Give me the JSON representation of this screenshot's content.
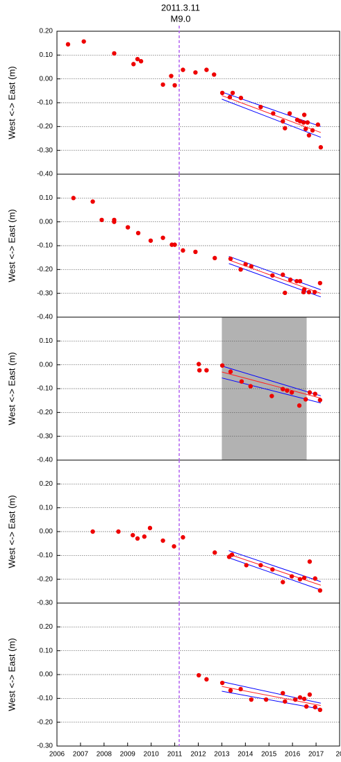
{
  "chart_data": [
    {
      "type": "scatter",
      "title": "2011.3.11",
      "subtitle": "M9.0",
      "ylabel": "West <-> East (m)",
      "xlim": [
        2006,
        2018
      ],
      "ylim": [
        -0.4,
        0.2
      ],
      "grid": true,
      "event_x": 2011.19,
      "event_color": "#b060f0",
      "yticks": [
        {
          "value": 0.2,
          "label": "0.20"
        },
        {
          "value": 0.1,
          "label": "0.10"
        },
        {
          "value": 0,
          "label": "0.00"
        },
        {
          "value": -0.1,
          "label": "-0.10"
        },
        {
          "value": -0.2,
          "label": "-0.20"
        },
        {
          "value": -0.3,
          "label": "-0.30"
        },
        {
          "value": -0.4,
          "label": "-0.40"
        }
      ],
      "series": [
        {
          "style": "points",
          "color": "#ee0000",
          "x": [
            2006.47,
            2007.14,
            2008.43,
            2009.25,
            2009.42,
            2009.57,
            2010.5,
            2010.85,
            2011.0,
            2011.35,
            2011.88,
            2012.35,
            2012.67,
            2013.02,
            2013.34,
            2013.46,
            2013.81,
            2014.65,
            2015.18,
            2015.59,
            2015.68,
            2015.88,
            2016.2,
            2016.32,
            2016.47,
            2016.5,
            2016.56,
            2016.64,
            2016.7,
            2016.85,
            2017.08,
            2017.2
          ],
          "values": [
            0.145,
            0.157,
            0.107,
            0.062,
            0.083,
            0.074,
            -0.024,
            0.012,
            -0.027,
            0.038,
            0.027,
            0.038,
            0.018,
            -0.059,
            -0.077,
            -0.059,
            -0.08,
            -0.118,
            -0.145,
            -0.178,
            -0.207,
            -0.145,
            -0.172,
            -0.178,
            -0.183,
            -0.151,
            -0.21,
            -0.183,
            -0.237,
            -0.216,
            -0.192,
            -0.287
          ]
        },
        {
          "style": "line",
          "color": "#ff2020",
          "x": [
            2013.0,
            2017.2
          ],
          "values": [
            -0.07,
            -0.225
          ]
        },
        {
          "style": "line",
          "color": "#0000ff",
          "x": [
            2013.0,
            2017.2
          ],
          "values": [
            -0.055,
            -0.2
          ]
        },
        {
          "style": "line",
          "color": "#0000ff",
          "x": [
            2013.0,
            2017.2
          ],
          "values": [
            -0.085,
            -0.245
          ]
        }
      ]
    },
    {
      "type": "scatter",
      "ylabel": "West <-> East (m)",
      "xlim": [
        2006,
        2018
      ],
      "ylim": [
        -0.4,
        0.2
      ],
      "grid": true,
      "event_x": 2011.19,
      "event_color": "#b060f0",
      "yticks": [
        {
          "value": 0.1,
          "label": "0.10"
        },
        {
          "value": 0,
          "label": "0.00"
        },
        {
          "value": -0.1,
          "label": "-0.10"
        },
        {
          "value": -0.2,
          "label": "-0.20"
        },
        {
          "value": -0.3,
          "label": "-0.30"
        },
        {
          "value": -0.4,
          "label": "-0.40"
        }
      ],
      "series": [
        {
          "style": "points",
          "color": "#ee0000",
          "x": [
            2006.7,
            2007.52,
            2007.9,
            2008.43,
            2008.43,
            2009.01,
            2009.45,
            2009.98,
            2010.5,
            2010.88,
            2011.0,
            2011.35,
            2011.88,
            2012.7,
            2013.37,
            2013.8,
            2014.01,
            2014.25,
            2015.15,
            2015.59,
            2015.68,
            2015.91,
            2016.18,
            2016.32,
            2016.47,
            2016.5,
            2016.7,
            2016.94,
            2017.17
          ],
          "values": [
            0.1,
            0.085,
            0.008,
            0.008,
            0.0,
            -0.023,
            -0.047,
            -0.079,
            -0.067,
            -0.096,
            -0.096,
            -0.12,
            -0.126,
            -0.152,
            -0.155,
            -0.2,
            -0.178,
            -0.187,
            -0.225,
            -0.222,
            -0.298,
            -0.243,
            -0.249,
            -0.249,
            -0.295,
            -0.284,
            -0.295,
            -0.295,
            -0.257
          ]
        },
        {
          "style": "line",
          "color": "#ff2020",
          "x": [
            2013.3,
            2017.2
          ],
          "values": [
            -0.16,
            -0.3
          ]
        },
        {
          "style": "line",
          "color": "#0000ff",
          "x": [
            2013.3,
            2017.2
          ],
          "values": [
            -0.145,
            -0.285
          ]
        },
        {
          "style": "line",
          "color": "#0000ff",
          "x": [
            2013.3,
            2017.2
          ],
          "values": [
            -0.175,
            -0.315
          ]
        }
      ]
    },
    {
      "type": "scatter",
      "ylabel": "West <-> East (m)",
      "xlim": [
        2006,
        2018
      ],
      "ylim": [
        -0.4,
        0.2
      ],
      "grid": true,
      "event_x": 2011.19,
      "event_color": "#b060f0",
      "shaded_x": [
        2013.0,
        2016.6
      ],
      "shade_color": "#b2b2b2",
      "yticks": [
        {
          "value": 0.1,
          "label": "0.10"
        },
        {
          "value": 0,
          "label": "0.00"
        },
        {
          "value": -0.1,
          "label": "-0.10"
        },
        {
          "value": -0.2,
          "label": "-0.20"
        },
        {
          "value": -0.3,
          "label": "-0.30"
        },
        {
          "value": -0.4,
          "label": "-0.40"
        }
      ],
      "series": [
        {
          "style": "points",
          "color": "#ee0000",
          "x": [
            2012.02,
            2012.05,
            2012.35,
            2013.02,
            2013.37,
            2013.84,
            2014.22,
            2015.12,
            2015.59,
            2015.77,
            2015.97,
            2016.29,
            2016.56,
            2016.73,
            2016.96,
            2017.17
          ],
          "values": [
            0.003,
            -0.023,
            -0.023,
            -0.003,
            -0.029,
            -0.07,
            -0.09,
            -0.131,
            -0.102,
            -0.108,
            -0.116,
            -0.171,
            -0.145,
            -0.116,
            -0.122,
            -0.148
          ]
        },
        {
          "style": "line",
          "color": "#ff2020",
          "x": [
            2013.0,
            2017.2
          ],
          "values": [
            -0.03,
            -0.14
          ]
        },
        {
          "style": "line",
          "color": "#0000ff",
          "x": [
            2013.0,
            2017.2
          ],
          "values": [
            -0.005,
            -0.13
          ]
        },
        {
          "style": "line",
          "color": "#0000ff",
          "x": [
            2013.0,
            2017.2
          ],
          "values": [
            -0.055,
            -0.16
          ]
        }
      ]
    },
    {
      "type": "scatter",
      "ylabel": "West <-> East (m)",
      "xlim": [
        2006,
        2018
      ],
      "ylim": [
        -0.3,
        0.3
      ],
      "grid": true,
      "event_x": 2011.19,
      "event_color": "#b060f0",
      "yticks": [
        {
          "value": 0.2,
          "label": "0.20"
        },
        {
          "value": 0.1,
          "label": "0.10"
        },
        {
          "value": 0,
          "label": "0.00"
        },
        {
          "value": -0.1,
          "label": "-0.10"
        },
        {
          "value": -0.2,
          "label": "-0.20"
        },
        {
          "value": -0.3,
          "label": "-0.30"
        }
      ],
      "series": [
        {
          "style": "points",
          "color": "#ee0000",
          "x": [
            2007.52,
            2008.61,
            2009.22,
            2009.42,
            2009.71,
            2009.95,
            2010.5,
            2010.97,
            2011.35,
            2012.7,
            2013.31,
            2013.43,
            2014.04,
            2014.65,
            2015.15,
            2015.59,
            2015.97,
            2016.32,
            2016.5,
            2016.73,
            2016.96,
            2017.17
          ],
          "values": [
            0.0,
            0.0,
            -0.015,
            -0.029,
            -0.021,
            0.015,
            -0.038,
            -0.062,
            -0.024,
            -0.088,
            -0.106,
            -0.097,
            -0.141,
            -0.141,
            -0.159,
            -0.212,
            -0.188,
            -0.2,
            -0.194,
            -0.126,
            -0.197,
            -0.247
          ]
        },
        {
          "style": "line",
          "color": "#ff2020",
          "x": [
            2013.3,
            2017.2
          ],
          "values": [
            -0.095,
            -0.225
          ]
        },
        {
          "style": "line",
          "color": "#0000ff",
          "x": [
            2013.3,
            2017.2
          ],
          "values": [
            -0.08,
            -0.21
          ]
        },
        {
          "style": "line",
          "color": "#0000ff",
          "x": [
            2013.3,
            2017.2
          ],
          "values": [
            -0.11,
            -0.245
          ]
        }
      ]
    },
    {
      "type": "scatter",
      "ylabel": "West <-> East (m)",
      "xlim": [
        2006,
        2018
      ],
      "ylim": [
        -0.3,
        0.3
      ],
      "grid": true,
      "event_x": 2011.19,
      "event_color": "#b060f0",
      "yticks": [
        {
          "value": 0.2,
          "label": "0.20"
        },
        {
          "value": 0.1,
          "label": "0.10"
        },
        {
          "value": 0,
          "label": "0.00"
        },
        {
          "value": -0.1,
          "label": "-0.10"
        },
        {
          "value": -0.2,
          "label": "-0.20"
        },
        {
          "value": -0.3,
          "label": "-0.30"
        }
      ],
      "xticks": [
        2006,
        2007,
        2008,
        2009,
        2010,
        2011,
        2012,
        2013,
        2014,
        2015,
        2016,
        2017,
        {
          "value": 2018,
          "label": "20"
        }
      ],
      "series": [
        {
          "style": "points",
          "color": "#ee0000",
          "x": [
            2012.02,
            2012.35,
            2013.02,
            2013.37,
            2013.8,
            2014.25,
            2014.88,
            2015.59,
            2015.68,
            2016.12,
            2016.32,
            2016.5,
            2016.59,
            2016.73,
            2016.96,
            2017.17
          ],
          "values": [
            -0.003,
            -0.02,
            -0.035,
            -0.067,
            -0.061,
            -0.105,
            -0.105,
            -0.078,
            -0.113,
            -0.105,
            -0.096,
            -0.102,
            -0.134,
            -0.084,
            -0.137,
            -0.148
          ]
        },
        {
          "style": "line",
          "color": "#ff2020",
          "x": [
            2013.0,
            2017.2
          ],
          "values": [
            -0.05,
            -0.13
          ]
        },
        {
          "style": "line",
          "color": "#0000ff",
          "x": [
            2013.0,
            2017.2
          ],
          "values": [
            -0.03,
            -0.12
          ]
        },
        {
          "style": "line",
          "color": "#0000ff",
          "x": [
            2013.0,
            2017.2
          ],
          "values": [
            -0.07,
            -0.145
          ]
        }
      ]
    }
  ]
}
